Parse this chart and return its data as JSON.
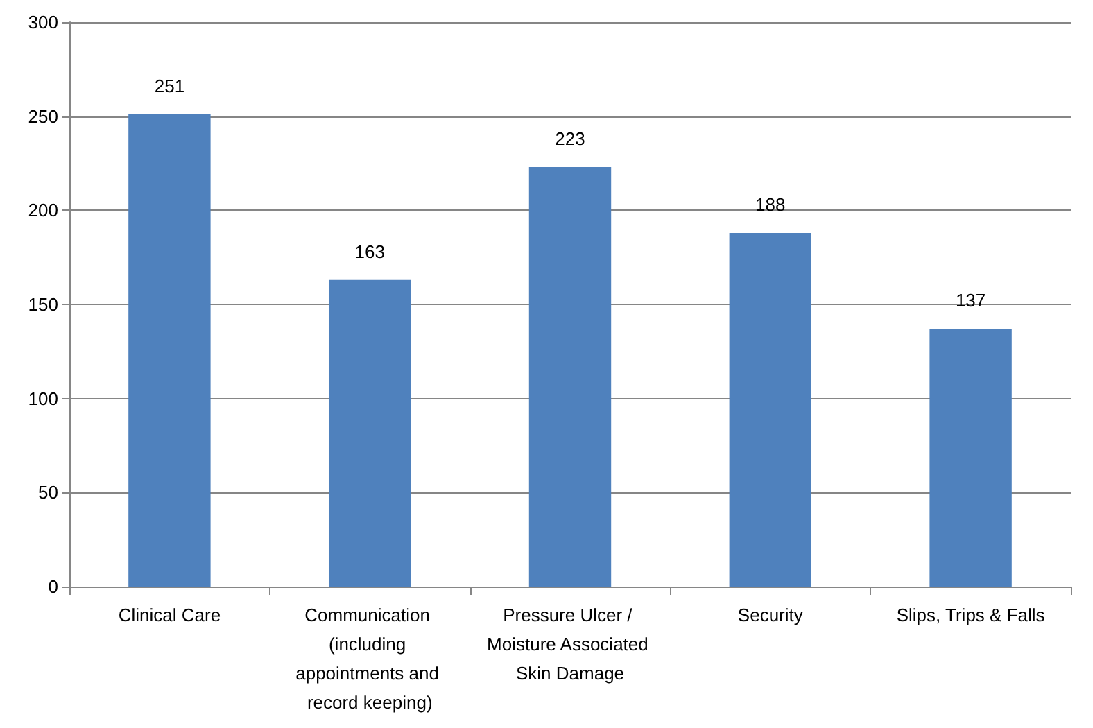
{
  "chart_data": {
    "type": "bar",
    "categories": [
      "Clinical Care",
      "Communication (including appointments and record keeping)",
      "Pressure Ulcer / Moisture Associated Skin Damage",
      "Security",
      "Slips, Trips & Falls"
    ],
    "values": [
      251,
      163,
      223,
      188,
      137
    ],
    "color": "#4f81bd",
    "ylim": [
      0,
      300
    ],
    "yticks": [
      0,
      50,
      100,
      150,
      200,
      250,
      300
    ],
    "grid": "y",
    "data_labels": true
  }
}
